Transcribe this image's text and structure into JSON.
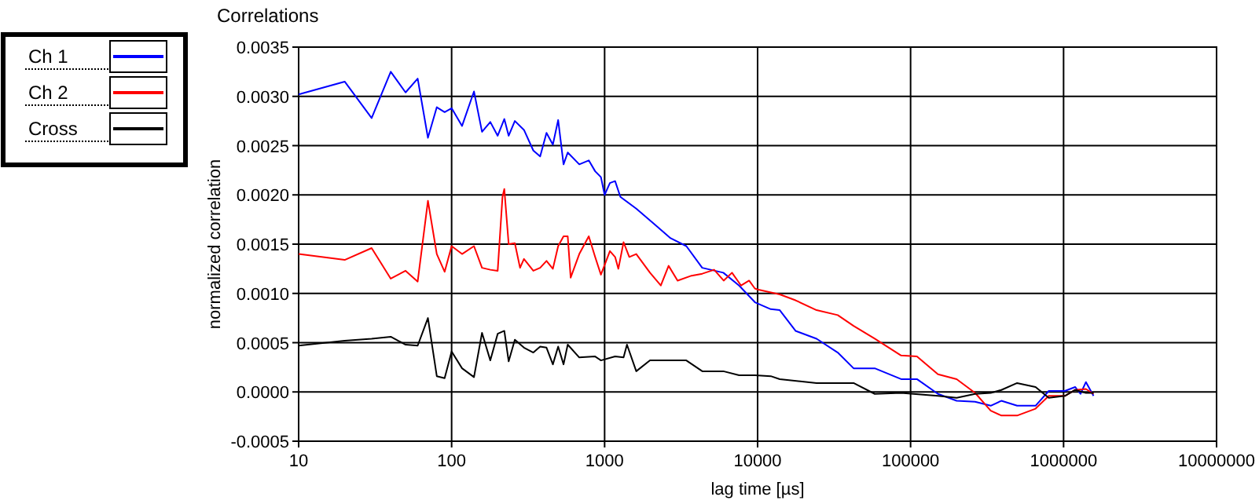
{
  "chart_data": {
    "type": "line",
    "title": "Correlations",
    "xlabel": "lag time [µs]",
    "ylabel": "normalized correlation",
    "log": "x",
    "grid": true,
    "legend": "top left",
    "line_style": "solid",
    "marker": "none",
    "xlim": [
      10,
      10000000
    ],
    "xticks": [
      10,
      100,
      1000,
      10000,
      100000,
      1000000,
      10000000
    ],
    "ylim": [
      -0.0005,
      0.0035
    ],
    "yticks": [
      -0.0005,
      {
        "value": 0,
        "label": "0.0000"
      },
      0.0005,
      {
        "value": 0.001,
        "label": "0.0010"
      },
      0.0015,
      {
        "value": 0.002,
        "label": "0.0020"
      },
      0.0025,
      {
        "value": 0.003,
        "label": "0.0030"
      },
      0.0035
    ],
    "series": [
      {
        "name": "Ch 1",
        "color": "#0000ff",
        "x": [
          10,
          20,
          30,
          40,
          50,
          60,
          70,
          80,
          90,
          100,
          117,
          140,
          158,
          179,
          200,
          221,
          236,
          259,
          297,
          342,
          379,
          417,
          459,
          497,
          539,
          574,
          683,
          788,
          867,
          946,
          1000,
          1083,
          1171,
          1268,
          1610,
          2128,
          2700,
          3422,
          4345,
          5970,
          7570,
          9610,
          12190,
          13960,
          17700,
          24300,
          33400,
          42400,
          58300,
          86700,
          110000,
          151000,
          200000,
          264000,
          334000,
          392000,
          497000,
          656000,
          800000,
          1020000,
          1190000,
          1290000,
          1400000,
          1570000
        ],
        "values": [
          0.00302,
          0.00315,
          0.00278,
          0.00325,
          0.00304,
          0.00318,
          0.00258,
          0.00289,
          0.00284,
          0.00288,
          0.0027,
          0.00305,
          0.00264,
          0.00274,
          0.0026,
          0.00277,
          0.0026,
          0.00275,
          0.00266,
          0.00245,
          0.00239,
          0.00263,
          0.00251,
          0.00276,
          0.00231,
          0.00243,
          0.00231,
          0.00235,
          0.00224,
          0.00218,
          0.002,
          0.00212,
          0.00214,
          0.00198,
          0.00186,
          0.0017,
          0.00156,
          0.00148,
          0.00126,
          0.00121,
          0.00108,
          0.00091,
          0.00084,
          0.00083,
          0.00062,
          0.00054,
          0.0004,
          0.00024,
          0.00024,
          0.00013,
          0.00013,
          -2e-05,
          -9e-05,
          -0.0001,
          -0.00014,
          -9e-05,
          -0.00014,
          -0.00014,
          1e-05,
          1e-05,
          5e-05,
          -2e-05,
          0.0001,
          -4e-05
        ]
      },
      {
        "name": "Ch 2",
        "color": "#ff0000",
        "x": [
          10,
          20,
          30,
          40,
          50,
          60,
          70,
          80,
          90,
          100,
          117,
          140,
          158,
          179,
          200,
          215,
          221,
          236,
          259,
          280,
          297,
          342,
          379,
          417,
          459,
          497,
          539,
          574,
          600,
          683,
          788,
          867,
          946,
          1083,
          1171,
          1230,
          1330,
          1450,
          1610,
          1980,
          2330,
          2620,
          3000,
          3700,
          4350,
          5200,
          6000,
          6800,
          7800,
          8800,
          9600,
          10000,
          13960,
          17700,
          24300,
          33400,
          42400,
          58300,
          86700,
          110000,
          151000,
          200000,
          264000,
          334000,
          392000,
          497000,
          656000,
          800000,
          1020000,
          1190000,
          1400000,
          1570000
        ],
        "values": [
          0.0014,
          0.00134,
          0.00146,
          0.00115,
          0.00123,
          0.00112,
          0.00194,
          0.0014,
          0.00122,
          0.00148,
          0.0014,
          0.00148,
          0.00126,
          0.00124,
          0.00123,
          0.00198,
          0.00206,
          0.0015,
          0.00151,
          0.00126,
          0.00135,
          0.00123,
          0.00126,
          0.00133,
          0.00125,
          0.00148,
          0.00158,
          0.00158,
          0.00116,
          0.0014,
          0.00158,
          0.00137,
          0.00119,
          0.00143,
          0.00137,
          0.00125,
          0.00152,
          0.00137,
          0.0014,
          0.00121,
          0.00108,
          0.00128,
          0.00113,
          0.00118,
          0.0012,
          0.00124,
          0.00113,
          0.00121,
          0.00108,
          0.00113,
          0.00105,
          0.00104,
          0.00099,
          0.00093,
          0.00083,
          0.00078,
          0.00067,
          0.00054,
          0.00037,
          0.00036,
          0.00018,
          0.00013,
          -1e-05,
          -0.00019,
          -0.00024,
          -0.00024,
          -0.00017,
          -4e-05,
          -4e-05,
          2e-05,
          3e-05,
          -2e-05
        ]
      },
      {
        "name": "Cross",
        "color": "#000000",
        "x": [
          10,
          20,
          30,
          40,
          50,
          60,
          70,
          80,
          90,
          100,
          117,
          140,
          158,
          179,
          200,
          221,
          236,
          259,
          297,
          342,
          379,
          417,
          459,
          497,
          539,
          574,
          683,
          867,
          946,
          1171,
          1330,
          1400,
          1610,
          1980,
          2620,
          3420,
          4350,
          5970,
          7570,
          9610,
          12190,
          13960,
          24300,
          42400,
          58300,
          86700,
          151000,
          200000,
          264000,
          334000,
          392000,
          497000,
          656000,
          800000,
          1020000,
          1190000,
          1400000,
          1570000
        ],
        "values": [
          0.00047,
          0.00052,
          0.00054,
          0.00056,
          0.00048,
          0.00047,
          0.00075,
          0.00016,
          0.00014,
          0.00041,
          0.00024,
          0.00015,
          0.0006,
          0.00032,
          0.00059,
          0.00062,
          0.00031,
          0.00053,
          0.00045,
          0.0004,
          0.00046,
          0.00045,
          0.00028,
          0.00046,
          0.00028,
          0.00048,
          0.00035,
          0.00036,
          0.00032,
          0.00036,
          0.00035,
          0.00048,
          0.00021,
          0.00032,
          0.00032,
          0.00032,
          0.00021,
          0.00021,
          0.00017,
          0.00017,
          0.00016,
          0.00013,
          9e-05,
          9e-05,
          -2e-05,
          -1e-05,
          -4e-05,
          -6e-05,
          -2e-05,
          -1e-05,
          2e-05,
          9e-05,
          5e-05,
          -6e-05,
          -4e-05,
          2e-05,
          -1e-05,
          -1e-05
        ]
      }
    ]
  }
}
